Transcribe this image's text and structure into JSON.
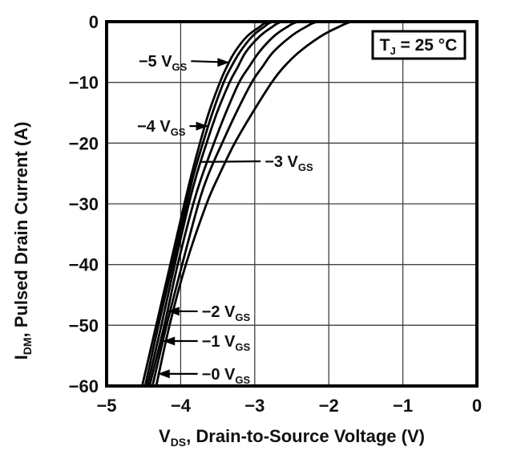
{
  "chart_data": {
    "type": "line",
    "title": "",
    "xlabel": {
      "main": "V",
      "sub": "DS",
      "rest": ", Drain-to-Source Voltage (V)"
    },
    "ylabel": {
      "main": "I",
      "sub": "DM",
      "rest": ", Pulsed Drain Current (A)"
    },
    "xlim": [
      -5,
      0
    ],
    "ylim": [
      -60,
      0
    ],
    "grid": true,
    "legend_position": "none",
    "condition_box": {
      "main": "T",
      "sub": "J",
      "rest": " = 25 °C"
    },
    "x_ticks": [
      {
        "v": -5,
        "label": "−5"
      },
      {
        "v": -4,
        "label": "−4"
      },
      {
        "v": -3,
        "label": "−3"
      },
      {
        "v": -2,
        "label": "−2"
      },
      {
        "v": -1,
        "label": "−1"
      },
      {
        "v": 0,
        "label": "0"
      }
    ],
    "y_ticks": [
      {
        "v": 0,
        "label": "0"
      },
      {
        "v": -10,
        "label": "−10"
      },
      {
        "v": -20,
        "label": "−20"
      },
      {
        "v": -30,
        "label": "−30"
      },
      {
        "v": -40,
        "label": "−40"
      },
      {
        "v": -50,
        "label": "−50"
      },
      {
        "v": -60,
        "label": "−60"
      }
    ],
    "series": [
      {
        "name": "VGS = −5 V",
        "vgs": -5,
        "points": [
          [
            -2.45,
            0
          ],
          [
            -2.8,
            0
          ],
          [
            -2.95,
            -1
          ],
          [
            -3.11,
            -2.5
          ],
          [
            -3.27,
            -5
          ],
          [
            -3.38,
            -7.5
          ],
          [
            -3.47,
            -10
          ],
          [
            -3.62,
            -15
          ],
          [
            -3.74,
            -20
          ],
          [
            -3.85,
            -25
          ],
          [
            -3.95,
            -30
          ],
          [
            -4.14,
            -40
          ],
          [
            -4.33,
            -50
          ],
          [
            -4.52,
            -60
          ]
        ]
      },
      {
        "name": "VGS = −4 V",
        "vgs": -4,
        "points": [
          [
            -2.38,
            0
          ],
          [
            -2.74,
            0
          ],
          [
            -2.89,
            -1
          ],
          [
            -3.04,
            -2.5
          ],
          [
            -3.2,
            -5
          ],
          [
            -3.32,
            -7.5
          ],
          [
            -3.42,
            -10
          ],
          [
            -3.57,
            -15
          ],
          [
            -3.7,
            -20
          ],
          [
            -3.82,
            -25
          ],
          [
            -3.92,
            -30
          ],
          [
            -4.11,
            -40
          ],
          [
            -4.3,
            -50
          ],
          [
            -4.48,
            -60
          ]
        ]
      },
      {
        "name": "VGS = −3 V",
        "vgs": -3,
        "points": [
          [
            -2.28,
            0
          ],
          [
            -2.62,
            0
          ],
          [
            -2.78,
            -1
          ],
          [
            -2.94,
            -2.5
          ],
          [
            -3.12,
            -5
          ],
          [
            -3.23,
            -7.5
          ],
          [
            -3.34,
            -10
          ],
          [
            -3.51,
            -15
          ],
          [
            -3.65,
            -20
          ],
          [
            -3.78,
            -25
          ],
          [
            -3.89,
            -30
          ],
          [
            -4.08,
            -40
          ],
          [
            -4.26,
            -50
          ],
          [
            -4.45,
            -60
          ]
        ]
      },
      {
        "name": "VGS = −2 V",
        "vgs": -2,
        "points": [
          [
            -2.06,
            0
          ],
          [
            -2.4,
            0
          ],
          [
            -2.58,
            -1
          ],
          [
            -2.75,
            -2.5
          ],
          [
            -2.94,
            -5
          ],
          [
            -3.08,
            -7.5
          ],
          [
            -3.21,
            -10
          ],
          [
            -3.39,
            -15
          ],
          [
            -3.55,
            -20
          ],
          [
            -3.7,
            -25
          ],
          [
            -3.83,
            -30
          ],
          [
            -4.04,
            -40
          ],
          [
            -4.22,
            -50
          ],
          [
            -4.42,
            -60
          ]
        ]
      },
      {
        "name": "VGS = −1 V",
        "vgs": -1,
        "points": [
          [
            -1.8,
            0
          ],
          [
            -2.14,
            0
          ],
          [
            -2.33,
            -1
          ],
          [
            -2.52,
            -2.5
          ],
          [
            -2.75,
            -5
          ],
          [
            -2.9,
            -7.5
          ],
          [
            -3.04,
            -10
          ],
          [
            -3.25,
            -15
          ],
          [
            -3.44,
            -20
          ],
          [
            -3.62,
            -25
          ],
          [
            -3.76,
            -30
          ],
          [
            -3.98,
            -40
          ],
          [
            -4.19,
            -50
          ],
          [
            -4.38,
            -60
          ]
        ]
      },
      {
        "name": "VGS = −0 V",
        "vgs": 0,
        "points": [
          [
            -1.38,
            0
          ],
          [
            -1.68,
            0
          ],
          [
            -1.89,
            -1
          ],
          [
            -2.12,
            -2.5
          ],
          [
            -2.4,
            -5
          ],
          [
            -2.61,
            -7.5
          ],
          [
            -2.77,
            -10
          ],
          [
            -3.03,
            -15
          ],
          [
            -3.27,
            -20
          ],
          [
            -3.47,
            -25
          ],
          [
            -3.65,
            -30
          ],
          [
            -3.93,
            -40
          ],
          [
            -4.15,
            -50
          ],
          [
            -4.33,
            -60
          ]
        ]
      }
    ],
    "annotations": [
      {
        "label": {
          "main": "−5 V",
          "sub": "GS"
        },
        "from": [
          -3.86,
          -6.5
        ],
        "to": [
          -3.34,
          -6.7
        ],
        "head": true,
        "text_side": "left"
      },
      {
        "label": {
          "main": "−4 V",
          "sub": "GS"
        },
        "from": [
          -3.88,
          -17.2
        ],
        "to": [
          -3.63,
          -17.2
        ],
        "head": true,
        "text_side": "left"
      },
      {
        "label": {
          "main": "−3 V",
          "sub": "GS"
        },
        "from": [
          -2.92,
          -23.0
        ],
        "to": [
          -3.72,
          -23.1
        ],
        "head": false,
        "text_side": "right"
      },
      {
        "label": {
          "main": "−2 V",
          "sub": "GS"
        },
        "from": [
          -3.77,
          -47.7
        ],
        "to": [
          -4.18,
          -47.7
        ],
        "head": true,
        "text_side": "right"
      },
      {
        "label": {
          "main": "−1 V",
          "sub": "GS"
        },
        "from": [
          -3.77,
          -52.6
        ],
        "to": [
          -4.24,
          -52.6
        ],
        "head": true,
        "text_side": "right"
      },
      {
        "label": {
          "main": "−0 V",
          "sub": "GS"
        },
        "from": [
          -3.77,
          -58.0
        ],
        "to": [
          -4.31,
          -58.0
        ],
        "head": true,
        "text_side": "right"
      }
    ],
    "colors": {
      "curve": "#000000",
      "grid": "#404040",
      "border": "#000000",
      "text": "#111111",
      "background": "#ffffff"
    }
  }
}
